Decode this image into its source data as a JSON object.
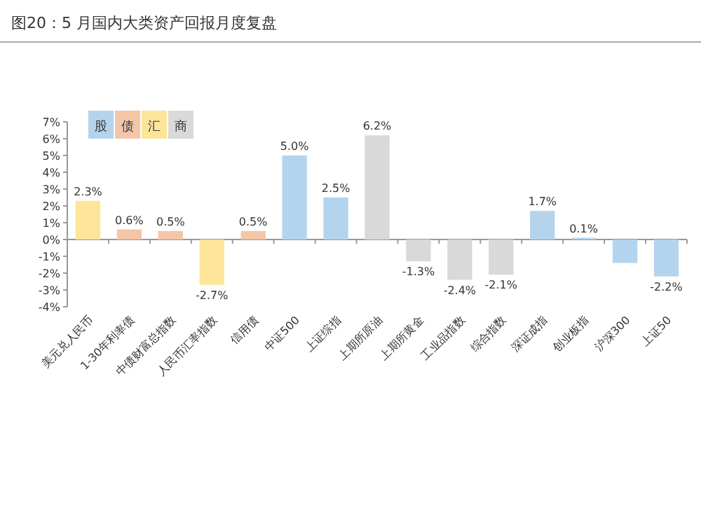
{
  "chart_data": {
    "type": "bar",
    "title": "图20：5 月国内大类资产回报月度复盘",
    "categories": [
      "美元兑人民币",
      "1-30年利率债",
      "中债财富总指数",
      "人民币汇率指数",
      "信用债",
      "中证500",
      "上证综指",
      "上期所原油",
      "上期所黄金",
      "工业品指数",
      "综合指数",
      "深证成指",
      "创业板指",
      "沪深300",
      "上证50"
    ],
    "stacked": true,
    "series": [
      {
        "name": "股",
        "color": "#b4d4ee",
        "values": [
          null,
          null,
          null,
          null,
          null,
          5.0,
          2.5,
          null,
          null,
          null,
          null,
          1.7,
          0.1,
          -1.4,
          -2.2
        ],
        "value_labels": [
          null,
          null,
          null,
          null,
          null,
          "5.0%",
          "2.5%",
          null,
          null,
          null,
          null,
          "1.7%",
          "0.1%",
          null,
          "-2.2%"
        ]
      },
      {
        "name": "债",
        "color": "#f4c6a8",
        "values": [
          null,
          0.6,
          0.5,
          null,
          0.5,
          null,
          null,
          null,
          null,
          null,
          null,
          null,
          null,
          null,
          null
        ],
        "value_labels": [
          null,
          "0.6%",
          "0.5%",
          null,
          "0.5%",
          null,
          null,
          null,
          null,
          null,
          null,
          null,
          null,
          null,
          null
        ]
      },
      {
        "name": "汇",
        "color": "#fde59a",
        "values": [
          2.3,
          null,
          null,
          -2.7,
          null,
          null,
          null,
          null,
          null,
          null,
          null,
          null,
          null,
          null,
          null
        ],
        "value_labels": [
          "2.3%",
          null,
          null,
          "-2.7%",
          null,
          null,
          null,
          null,
          null,
          null,
          null,
          null,
          null,
          null,
          null
        ]
      },
      {
        "name": "商",
        "color": "#d9d9d9",
        "values": [
          null,
          null,
          null,
          null,
          null,
          null,
          null,
          6.2,
          -1.3,
          -2.4,
          -2.1,
          null,
          null,
          null,
          null
        ],
        "value_labels": [
          null,
          null,
          null,
          null,
          null,
          null,
          null,
          "6.2%",
          "-1.3%",
          "-2.4%",
          "-2.1%",
          null,
          null,
          null,
          null
        ]
      }
    ],
    "ylim": [
      -4,
      7
    ],
    "yticks": [
      {
        "value": -4,
        "label": "-4%"
      },
      {
        "value": -3,
        "label": "-3%"
      },
      {
        "value": -2,
        "label": "-2%"
      },
      {
        "value": -1,
        "label": "-1%"
      },
      {
        "value": 0,
        "label": "0%"
      },
      {
        "value": 1,
        "label": "1%"
      },
      {
        "value": 2,
        "label": "2%"
      },
      {
        "value": 3,
        "label": "3%"
      },
      {
        "value": 4,
        "label": "4%"
      },
      {
        "value": 5,
        "label": "5%"
      },
      {
        "value": 6,
        "label": "6%"
      },
      {
        "value": 7,
        "label": "7%"
      }
    ],
    "legend": "top left"
  }
}
